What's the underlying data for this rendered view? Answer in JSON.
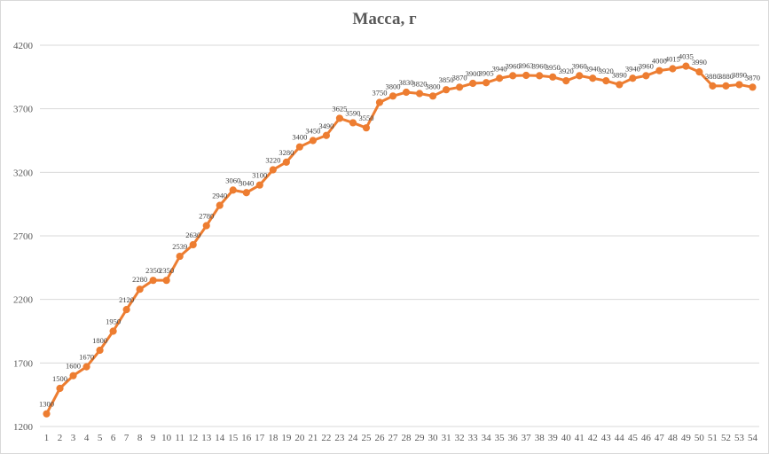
{
  "chart_data": {
    "type": "line",
    "title": "Масса, г",
    "xlabel": "",
    "ylabel": "",
    "categories": [
      "1",
      "2",
      "3",
      "4",
      "5",
      "6",
      "7",
      "8",
      "9",
      "10",
      "11",
      "12",
      "13",
      "14",
      "15",
      "16",
      "17",
      "18",
      "19",
      "20",
      "21",
      "22",
      "23",
      "24",
      "25",
      "26",
      "27",
      "28",
      "29",
      "30",
      "31",
      "32",
      "33",
      "34",
      "35",
      "36",
      "37",
      "38",
      "39",
      "40",
      "41",
      "42",
      "43",
      "44",
      "45",
      "46",
      "47",
      "48",
      "49",
      "50",
      "51",
      "52",
      "53",
      "54"
    ],
    "series": [
      {
        "values": [
          1300,
          1500,
          1600,
          1670,
          1800,
          1950,
          2120,
          2280,
          2350,
          2350,
          2539,
          2630,
          2780,
          2940,
          3060,
          3040,
          3100,
          3220,
          3280,
          3400,
          3450,
          3490,
          3625,
          3590,
          3550,
          3750,
          3800,
          3830,
          3820,
          3800,
          3850,
          3870,
          3900,
          3905,
          3940,
          3960,
          3963,
          3960,
          3950,
          3920,
          3960,
          3940,
          3920,
          3890,
          3940,
          3960,
          4000,
          4015,
          4035,
          3990,
          3880,
          3880,
          3890,
          3870
        ],
        "color": "#ED7D31"
      }
    ],
    "yticks": [
      1200,
      1700,
      2200,
      2700,
      3200,
      3700,
      4200
    ],
    "ylim": [
      1200,
      4200
    ],
    "grid": true,
    "data_labels": true,
    "legend": "none"
  }
}
